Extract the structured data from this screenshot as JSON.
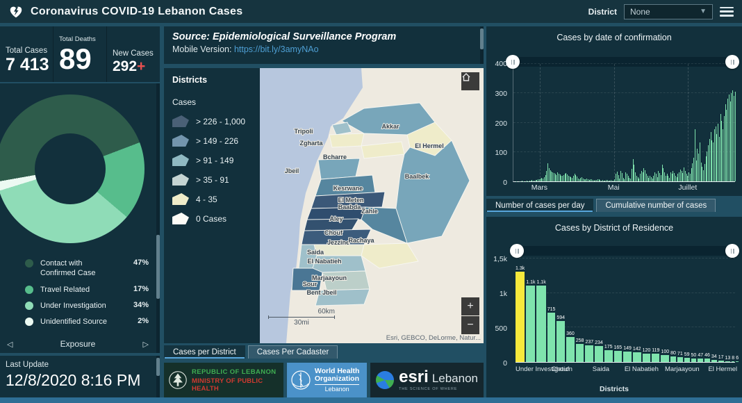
{
  "header": {
    "title": "Coronavirus COVID-19 Lebanon Cases",
    "district_label": "District",
    "district_value": "None"
  },
  "stats": {
    "total_cases_label": "Total Cases",
    "total_cases_value": "7 413",
    "total_deaths_label": "Total Deaths",
    "total_deaths_value": "89",
    "new_cases_label": "New Cases",
    "new_cases_value": "292",
    "new_cases_plus": "+"
  },
  "exposure": {
    "footer_label": "Exposure"
  },
  "last_update": {
    "label": "Last Update",
    "value": "12/8/2020 8:16 PM"
  },
  "source_panel": {
    "source_text": "Source: Epidemiological Surveillance Program",
    "mobile_label": "Mobile Version:",
    "mobile_link": "https://bit.ly/3amyNAo"
  },
  "map": {
    "legend_title": "Districts",
    "legend_subtitle": "Cases",
    "classes": [
      {
        "label": "> 226 - 1,000",
        "color": "#4a6076"
      },
      {
        "label": "> 149 - 226",
        "color": "#7395ad"
      },
      {
        "label": "> 91 - 149",
        "color": "#8fb9c2"
      },
      {
        "label": "> 35 - 91",
        "color": "#c4d4d2"
      },
      {
        "label": "4 - 35",
        "color": "#efecc9"
      },
      {
        "label": "0 Cases",
        "color": "#fcfcf7"
      }
    ],
    "districts": [
      "Akkar",
      "Tripoli",
      "Zgharta",
      "El Hermel",
      "Bcharre",
      "Jbeil",
      "Baalbek",
      "Kesrwane",
      "El Meten",
      "Baabda",
      "Zahle",
      "Aley",
      "Chouf",
      "Jezzine",
      "Rachaya",
      "Saida",
      "El Nabatieh",
      "Marjaayoun",
      "Sour",
      "Bent Jbeil"
    ],
    "scale_km": "60km",
    "scale_mi": "30mi",
    "attribution": "Esri, GEBCO, DeLorme, Natur...",
    "zoom_in": "+",
    "zoom_out": "−",
    "tabs": [
      {
        "label": "Cases per District",
        "active": true
      },
      {
        "label": "Cases Per Cadaster",
        "active": false
      }
    ]
  },
  "logos": {
    "moph_line1": "REPUBLIC OF LEBANON",
    "moph_line2": "MINISTRY OF PUBLIC HEALTH",
    "who_line1": "World Health",
    "who_line2": "Organization",
    "who_line3": "Lebanon",
    "esri_name": "esri",
    "esri_region": "Lebanon",
    "esri_tagline": "THE SCIENCE OF WHERE"
  },
  "chart_tabs": [
    {
      "label": "Number of cases per day",
      "active": true
    },
    {
      "label": "Cumulative number of cases",
      "active": false
    }
  ],
  "chart_data": [
    {
      "id": "exposure-donut",
      "type": "pie",
      "title": "Exposure",
      "legend_position": "bottom",
      "start_angle_deg": 260,
      "series": [
        {
          "label": "Contact with Confirmed Case",
          "pct": 47,
          "display": "47%",
          "color": "#2e5c4b"
        },
        {
          "label": "Travel Related",
          "pct": 17,
          "display": "17%",
          "color": "#57bd8c"
        },
        {
          "label": "Under Investigation",
          "pct": 34,
          "display": "34%",
          "color": "#8fdcb7"
        },
        {
          "label": "Unidentified Source",
          "pct": 2,
          "display": "2%",
          "color": "#ecf9f2"
        }
      ]
    },
    {
      "id": "daily-cases",
      "type": "bar",
      "title": "Cases by  date of confirmation",
      "y_ticks": [
        "0",
        "100",
        "200",
        "300",
        "400"
      ],
      "ylim": [
        0,
        400
      ],
      "grid": "dashed",
      "x_ticks": [
        "Mars",
        "Mai",
        "Juillet"
      ],
      "x_tick_pos_pct": [
        12,
        45.4,
        78.7
      ],
      "bar_color": "#7fe3ad",
      "values": [
        0,
        0,
        1,
        0,
        0,
        1,
        0,
        2,
        1,
        0,
        1,
        2,
        1,
        3,
        2,
        4,
        3,
        2,
        5,
        4,
        6,
        8,
        10,
        12,
        9,
        15,
        22,
        35,
        62,
        45,
        38,
        33,
        30,
        28,
        25,
        22,
        30,
        26,
        24,
        20,
        18,
        22,
        26,
        28,
        24,
        20,
        16,
        14,
        12,
        18,
        25,
        22,
        16,
        10,
        8,
        12,
        14,
        10,
        8,
        6,
        9,
        7,
        5,
        8,
        6,
        4,
        3,
        5,
        4,
        6,
        8,
        5,
        3,
        4,
        2,
        3,
        5,
        4,
        3,
        2,
        4,
        3,
        2,
        8,
        25,
        32,
        22,
        10,
        36,
        28,
        12,
        8,
        30,
        26,
        18,
        12,
        10,
        42,
        75,
        58,
        30,
        20,
        15,
        10,
        25,
        35,
        30,
        46,
        38,
        25,
        18,
        12,
        20,
        15,
        10,
        20,
        30,
        25,
        15,
        35,
        28,
        22,
        56,
        46,
        30,
        20,
        25,
        18,
        12,
        30,
        25,
        36,
        28,
        20,
        15,
        25,
        30,
        40,
        35,
        28,
        48,
        35,
        25,
        20,
        30,
        25,
        45,
        62,
        80,
        178,
        70,
        112,
        95,
        132,
        65,
        50,
        38,
        60,
        85,
        102,
        122,
        145,
        168,
        140,
        132,
        178,
        188,
        162,
        196,
        152,
        230,
        205,
        178,
        222,
        262,
        245,
        282,
        295,
        272,
        300,
        310,
        290,
        305
      ]
    },
    {
      "id": "district-cases",
      "type": "bar",
      "title": "Cases by District of Residence",
      "xlabel": "Districts",
      "y_ticks": [
        "0",
        "500",
        "1k",
        "1,5k"
      ],
      "ylim": [
        0,
        1500
      ],
      "x_ticks": [
        "Under Investigation",
        "Chouf",
        "Saida",
        "El Nabatieh",
        "Marjaayoun",
        "El Hermel"
      ],
      "bar_color": "#7fe3ad",
      "highlight_color": "#f6e93c",
      "highlight_index": 0,
      "values": [
        1300,
        1100,
        1100,
        715,
        594,
        360,
        258,
        237,
        234,
        175,
        165,
        149,
        142,
        120,
        119,
        100,
        80,
        71,
        59,
        50,
        47,
        46,
        34,
        17,
        13,
        8,
        6
      ],
      "labels": [
        "1.3k",
        "1.1k",
        "1.1k",
        "715",
        "594",
        "360",
        "258",
        "237",
        "234",
        "175",
        "165",
        "149",
        "142",
        "120",
        "119",
        "100",
        "80",
        "71",
        "59",
        "50",
        "47",
        "46",
        "34",
        "17",
        "13",
        "8",
        "6"
      ]
    }
  ]
}
